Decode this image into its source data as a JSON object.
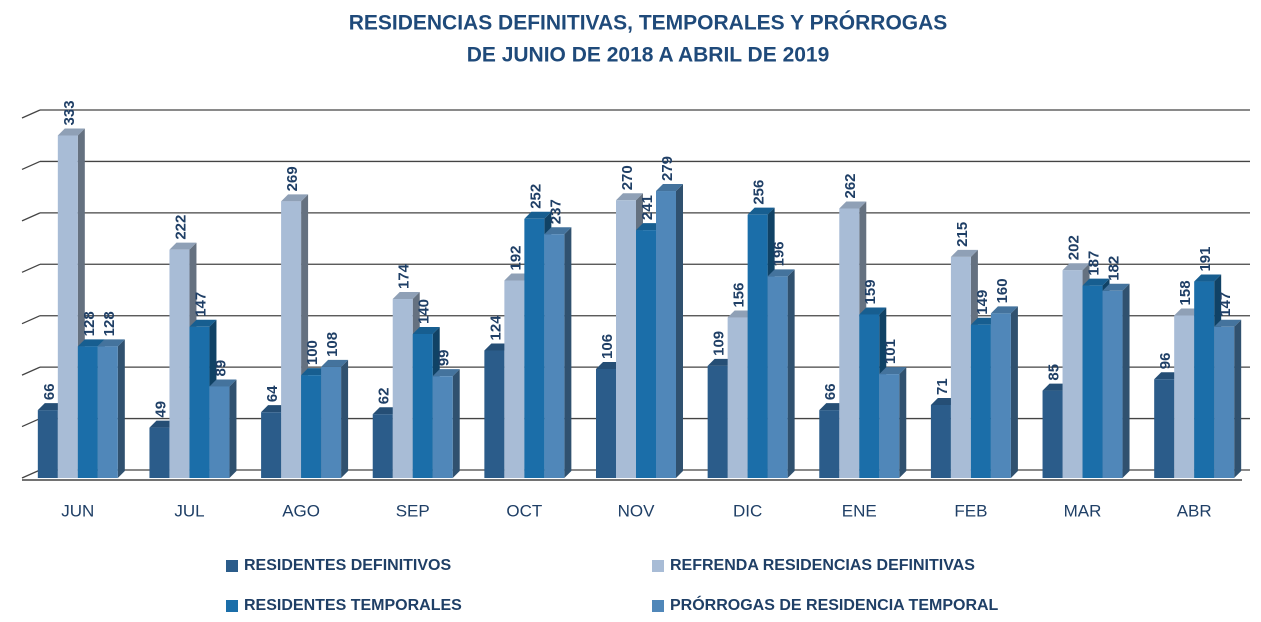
{
  "chart_data": {
    "type": "bar",
    "title": [
      "RESIDENCIAS DEFINITIVAS, TEMPORALES Y PRÓRROGAS",
      "DE JUNIO DE 2018 A ABRIL DE 2019"
    ],
    "categories": [
      "JUN",
      "JUL",
      "AGO",
      "SEP",
      "OCT",
      "NOV",
      "DIC",
      "ENE",
      "FEB",
      "MAR",
      "ABR"
    ],
    "series": [
      {
        "name": "RESIDENTES DEFINITIVOS",
        "color": "#2b5c8a",
        "values": [
          66,
          49,
          64,
          62,
          124,
          106,
          109,
          66,
          71,
          85,
          96
        ]
      },
      {
        "name": "REFRENDA RESIDENCIAS DEFINITIVAS",
        "color": "#a8bcd6",
        "values": [
          333,
          222,
          269,
          174,
          192,
          270,
          156,
          262,
          215,
          202,
          158
        ]
      },
      {
        "name": "RESIDENTES TEMPORALES",
        "color": "#1b6ea9",
        "values": [
          128,
          147,
          100,
          140,
          252,
          241,
          256,
          159,
          149,
          187,
          191
        ]
      },
      {
        "name": "PRÓRROGAS DE RESIDENCIA TEMPORAL",
        "color": "#5087b9",
        "values": [
          128,
          89,
          108,
          99,
          237,
          279,
          196,
          101,
          160,
          182,
          147
        ]
      }
    ],
    "ylim": [
      0,
      350
    ],
    "yticks": [
      0,
      50,
      100,
      150,
      200,
      250,
      300,
      350
    ],
    "grid": true
  }
}
